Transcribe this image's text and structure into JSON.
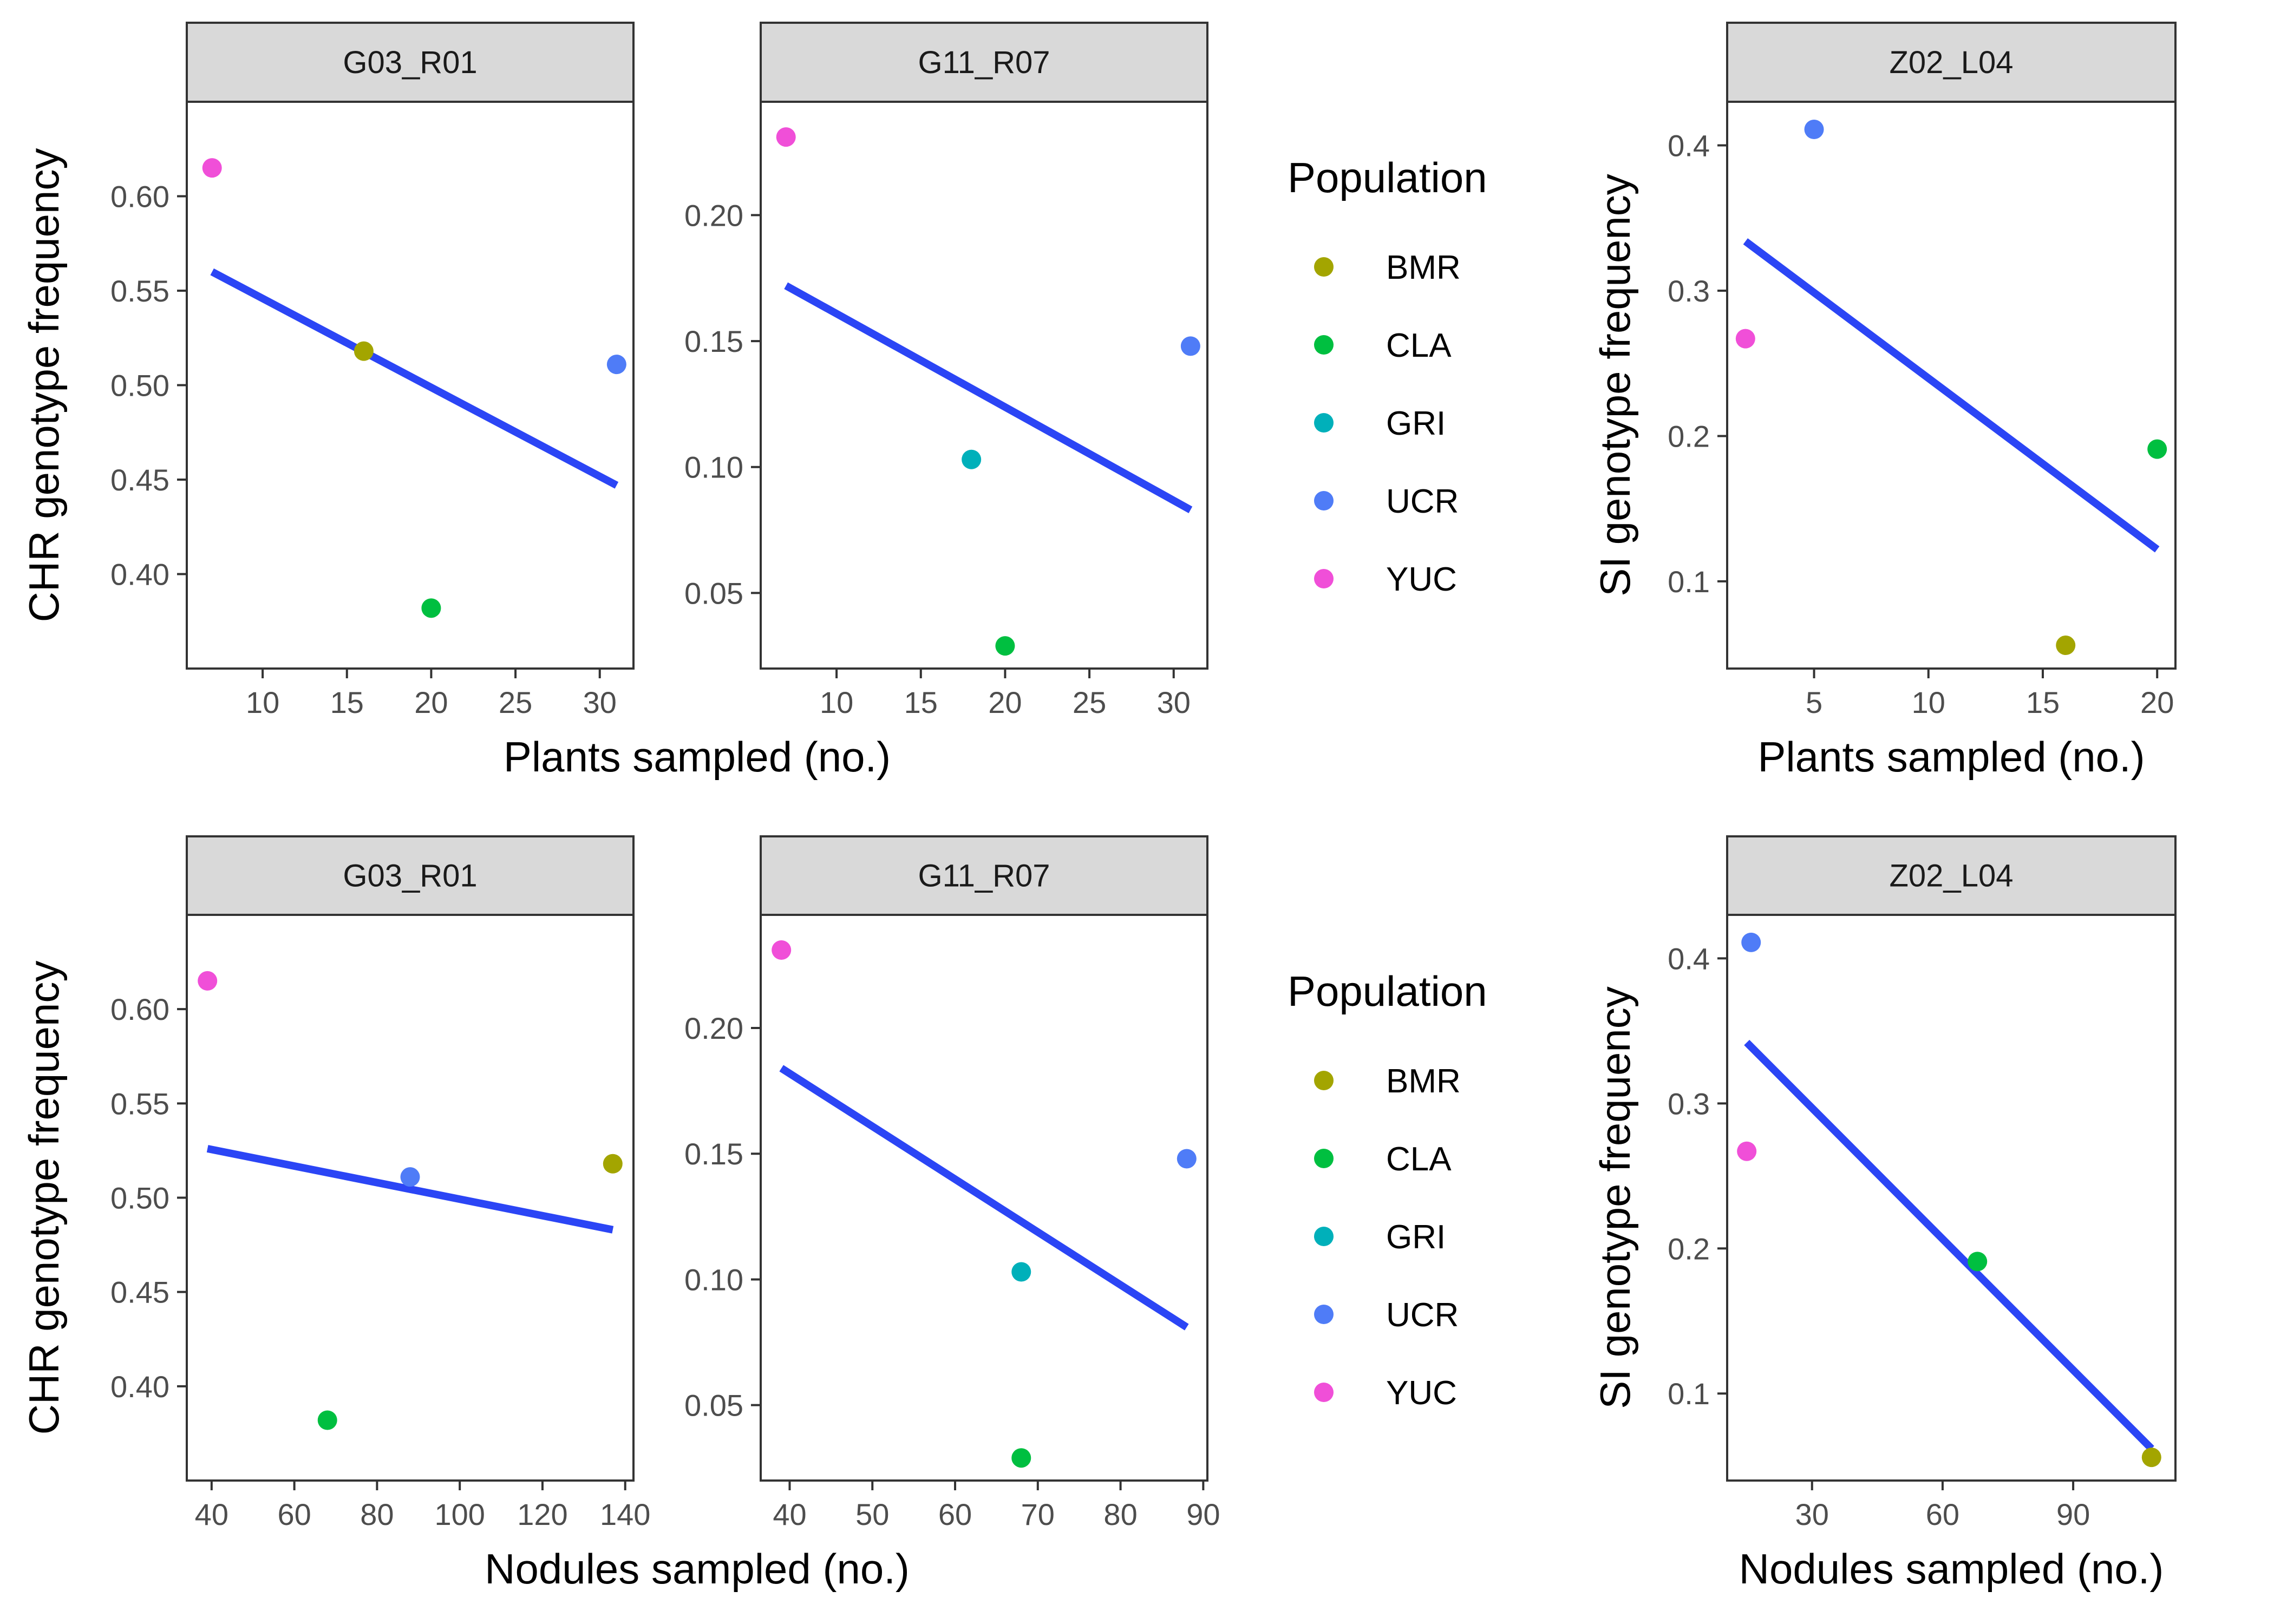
{
  "chart_data": {
    "type": "scatter",
    "colors": {
      "BMR": "#A3A500",
      "CLA": "#00BF40",
      "GRI": "#00B0BA",
      "UCR": "#4F7CF7",
      "YUC": "#F04FD8",
      "fit_line": "#2B45F5"
    },
    "legend": {
      "title": "Population",
      "placement": "right of second column",
      "entries": [
        "BMR",
        "CLA",
        "GRI",
        "UCR",
        "YUC"
      ]
    },
    "rows": [
      {
        "xlabel": "Plants sampled (no.)",
        "left_ylabel": "CHR genotype frequency",
        "right_ylabel": "SI genotype frequency",
        "panels": [
          {
            "strip": "G03_R01",
            "xlim": [
              5.5,
              32.0
            ],
            "ylim": [
              0.35,
              0.65
            ],
            "xticks": [
              10,
              15,
              20,
              25,
              30
            ],
            "yticks": [
              0.4,
              0.45,
              0.5,
              0.55,
              0.6
            ],
            "ytick_labels": [
              "0.40",
              "0.45",
              "0.50",
              "0.55",
              "0.60"
            ],
            "points": [
              {
                "population": "YUC",
                "x": 7,
                "y": 0.615
              },
              {
                "population": "BMR",
                "x": 16,
                "y": 0.518
              },
              {
                "population": "CLA",
                "x": 20,
                "y": 0.382
              },
              {
                "population": "UCR",
                "x": 31,
                "y": 0.511
              }
            ],
            "fit": {
              "x": [
                7,
                31
              ],
              "y": [
                0.56,
                0.447
              ]
            }
          },
          {
            "strip": "G11_R07",
            "xlim": [
              5.5,
              32.0
            ],
            "ylim": [
              0.02,
              0.245
            ],
            "xticks": [
              10,
              15,
              20,
              25,
              30
            ],
            "yticks": [
              0.05,
              0.1,
              0.15,
              0.2
            ],
            "ytick_labels": [
              "0.05",
              "0.10",
              "0.15",
              "0.20"
            ],
            "points": [
              {
                "population": "YUC",
                "x": 7,
                "y": 0.231
              },
              {
                "population": "GRI",
                "x": 18,
                "y": 0.103
              },
              {
                "population": "CLA",
                "x": 20,
                "y": 0.029
              },
              {
                "population": "UCR",
                "x": 31,
                "y": 0.148
              }
            ],
            "fit": {
              "x": [
                7,
                31
              ],
              "y": [
                0.172,
                0.083
              ]
            }
          },
          {
            "strip": "Z02_L04",
            "xlim": [
              1.2,
              20.8
            ],
            "ylim": [
              0.04,
              0.43
            ],
            "xticks": [
              5,
              10,
              15,
              20
            ],
            "yticks": [
              0.1,
              0.2,
              0.3,
              0.4
            ],
            "ytick_labels": [
              "0.1",
              "0.2",
              "0.3",
              "0.4"
            ],
            "points": [
              {
                "population": "UCR",
                "x": 5,
                "y": 0.411
              },
              {
                "population": "YUC",
                "x": 2,
                "y": 0.267
              },
              {
                "population": "CLA",
                "x": 20,
                "y": 0.191
              },
              {
                "population": "BMR",
                "x": 16,
                "y": 0.056
              }
            ],
            "fit": {
              "x": [
                2,
                20
              ],
              "y": [
                0.334,
                0.122
              ]
            }
          }
        ]
      },
      {
        "xlabel": "Nodules sampled (no.)",
        "left_ylabel": "CHR genotype frequency",
        "right_ylabel": "SI genotype frequency",
        "panels": [
          {
            "strip": "G03_R01",
            "xlim": [
              34.0,
              142.0
            ],
            "ylim": [
              0.35,
              0.65
            ],
            "xticks": [
              40,
              60,
              80,
              100,
              120,
              140
            ],
            "yticks": [
              0.4,
              0.45,
              0.5,
              0.55,
              0.6
            ],
            "ytick_labels": [
              "0.40",
              "0.45",
              "0.50",
              "0.55",
              "0.60"
            ],
            "points": [
              {
                "population": "YUC",
                "x": 39,
                "y": 0.615
              },
              {
                "population": "UCR",
                "x": 88,
                "y": 0.511
              },
              {
                "population": "BMR",
                "x": 137,
                "y": 0.518
              },
              {
                "population": "CLA",
                "x": 68,
                "y": 0.382
              }
            ],
            "fit": {
              "x": [
                39,
                137
              ],
              "y": [
                0.526,
                0.483
              ]
            }
          },
          {
            "strip": "G11_R07",
            "xlim": [
              36.5,
              90.5
            ],
            "ylim": [
              0.02,
              0.245
            ],
            "xticks": [
              40,
              50,
              60,
              70,
              80,
              90
            ],
            "yticks": [
              0.05,
              0.1,
              0.15,
              0.2
            ],
            "ytick_labels": [
              "0.05",
              "0.10",
              "0.15",
              "0.20"
            ],
            "points": [
              {
                "population": "YUC",
                "x": 39,
                "y": 0.231
              },
              {
                "population": "GRI",
                "x": 68,
                "y": 0.103
              },
              {
                "population": "CLA",
                "x": 68,
                "y": 0.029
              },
              {
                "population": "UCR",
                "x": 88,
                "y": 0.148
              }
            ],
            "fit": {
              "x": [
                39,
                88
              ],
              "y": [
                0.184,
                0.081
              ]
            }
          },
          {
            "strip": "Z02_L04",
            "xlim": [
              10.5,
              113.5
            ],
            "ylim": [
              0.04,
              0.43
            ],
            "xticks": [
              30,
              60,
              90
            ],
            "yticks": [
              0.1,
              0.2,
              0.3,
              0.4
            ],
            "ytick_labels": [
              "0.1",
              "0.2",
              "0.3",
              "0.4"
            ],
            "points": [
              {
                "population": "UCR",
                "x": 16,
                "y": 0.411
              },
              {
                "population": "YUC",
                "x": 15,
                "y": 0.267
              },
              {
                "population": "CLA",
                "x": 68,
                "y": 0.191
              },
              {
                "population": "BMR",
                "x": 108,
                "y": 0.056
              }
            ],
            "fit": {
              "x": [
                15,
                108
              ],
              "y": [
                0.342,
                0.062
              ]
            }
          }
        ]
      }
    ]
  }
}
